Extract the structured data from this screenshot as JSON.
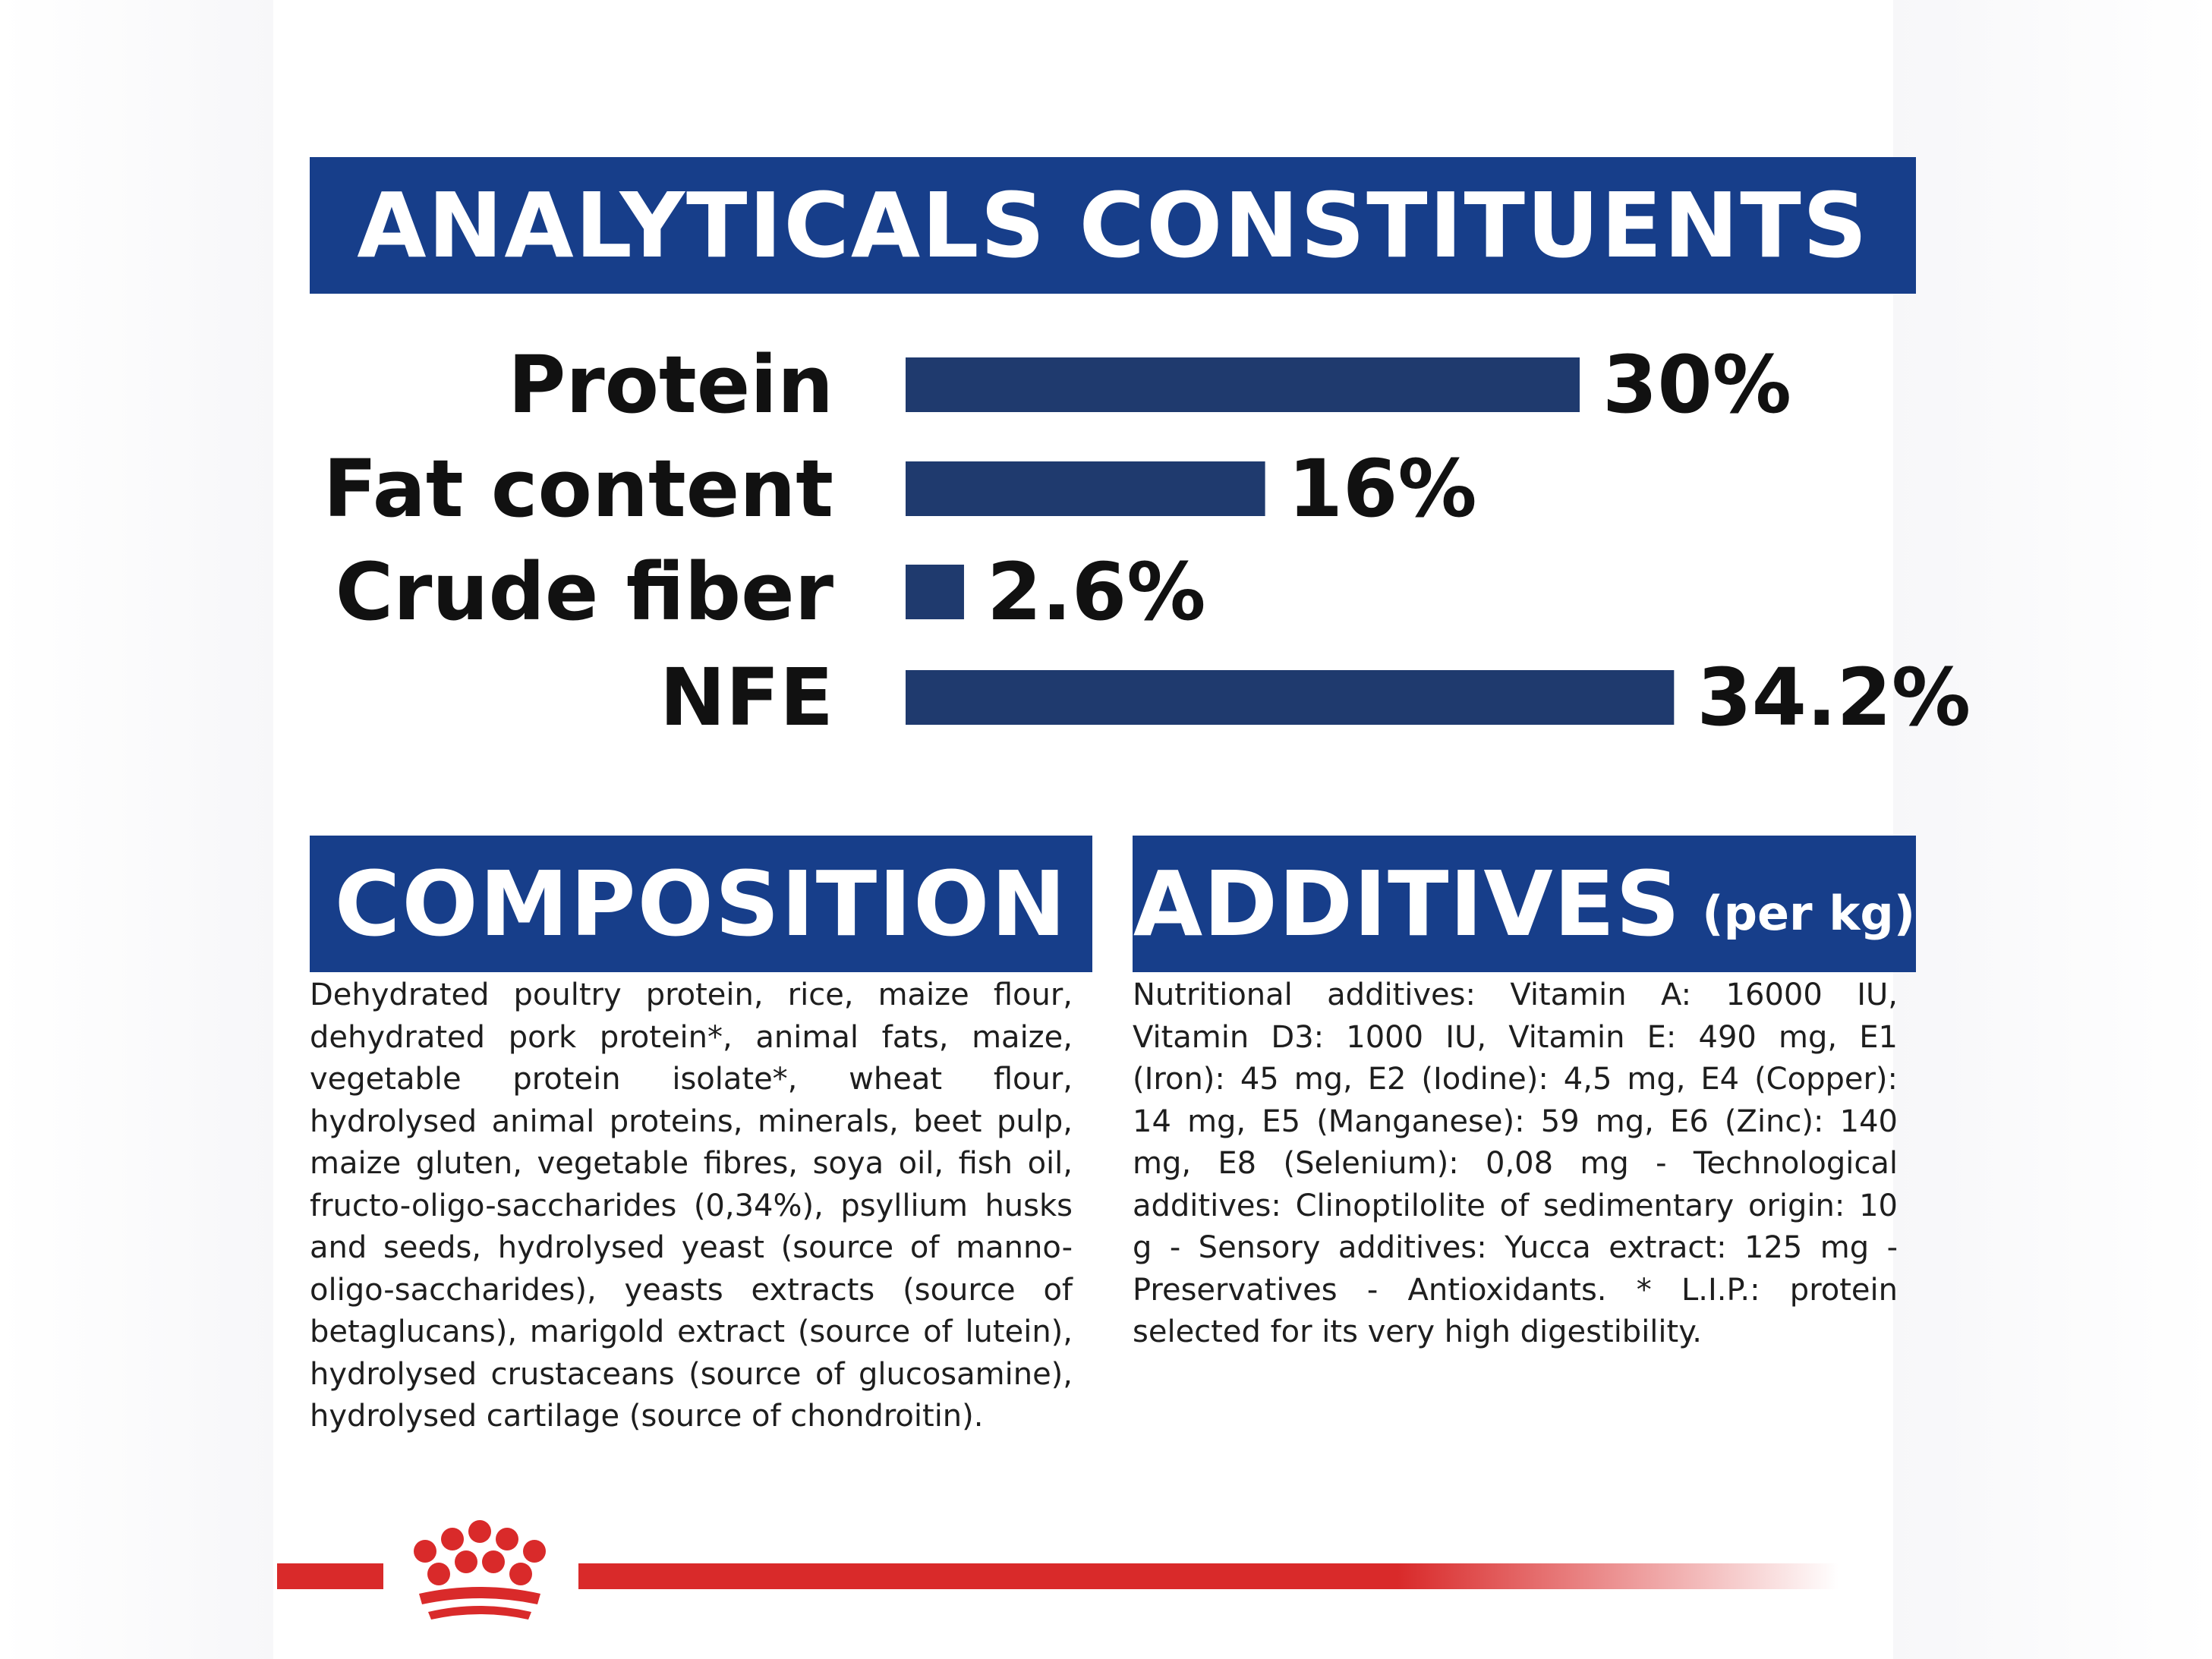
{
  "headers": {
    "analyticals": "ANALYTICALS CONSTITUENTS",
    "composition": "COMPOSITION",
    "additives": "ADDITIVES",
    "additives_suffix": "(per kg)"
  },
  "chart_data": {
    "type": "bar",
    "orientation": "horizontal",
    "categories": [
      "Protein",
      "Fat content",
      "Crude fiber",
      "NFE"
    ],
    "values": [
      30,
      16,
      2.6,
      34.2
    ],
    "labels": [
      "30%",
      "16%",
      "2.6%",
      "34.2%"
    ],
    "unit": "%",
    "title": "ANALYTICALS CONSTITUENTS",
    "grid": false,
    "bar_color": "#1f3a6e"
  },
  "composition_text": "Dehydrated poultry protein, rice, maize flour, dehydrated pork protein*, animal fats, maize, vegetable protein isolate*, wheat flour, hydrolysed animal proteins, minerals, beet pulp, maize gluten, vegetable fibres, soya oil, fish oil, fructo-oligo-saccharides (0,34%), psyllium husks and seeds, hydrolysed yeast (source of manno-oligo-saccharides), yeasts extracts (source of betaglucans), marigold extract (source of lutein), hydrolysed crustaceans (source of glucosamine), hydrolysed cartilage (source of chondroitin).",
  "additives_text": "Nutritional additives: Vitamin A: 16000 IU, Vitamin D3: 1000 IU, Vitamin E: 490 mg, E1 (Iron): 45 mg, E2 (Iodine): 4,5 mg, E4 (Copper): 14 mg, E5 (Manganese): 59 mg, E6 (Zinc): 140 mg, E8 (Selenium): 0,08 mg - Technological additives: Clinoptilolite of sedimentary origin: 10 g - Sensory additives: Yucca extract: 125 mg - Preservatives - Antioxidants. * L.I.P.: protein selected for its very high digestibility.",
  "colors": {
    "banner": "#173e8a",
    "bar": "#1f3a6e",
    "brand_red": "#d92a2a",
    "text": "#1e1e1e"
  },
  "icons": {
    "footer_logo": "crown-icon"
  }
}
